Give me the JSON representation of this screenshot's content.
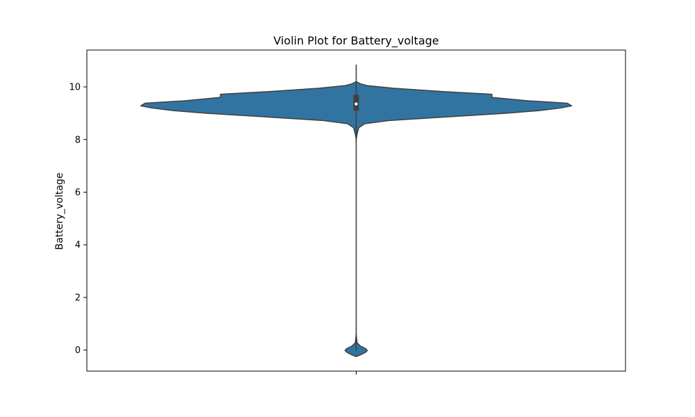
{
  "chart_data": {
    "type": "violin",
    "title": "Violin Plot for Battery_voltage",
    "xlabel": "",
    "ylabel": "Battery_voltage",
    "ylim": [
      -0.8,
      11.4
    ],
    "yticks": [
      0,
      2,
      4,
      6,
      8,
      10
    ],
    "ytick_labels": [
      "0",
      "2",
      "4",
      "6",
      "8",
      "10"
    ],
    "grid": false,
    "legend": "none",
    "colors": {
      "fill": "#3274a1",
      "outline": "#3f3f3f",
      "box": "#3f3f3f",
      "median": "#ffffff"
    },
    "distribution": {
      "min": -0.2,
      "max": 10.85,
      "q1": 9.1,
      "median": 9.35,
      "q3": 9.7,
      "whisker_low": 0.0,
      "whisker_high": 10.85
    },
    "density_profile": [
      {
        "y": -0.25,
        "w": 0.0
      },
      {
        "y": -0.18,
        "w": 0.02
      },
      {
        "y": -0.1,
        "w": 0.04
      },
      {
        "y": -0.02,
        "w": 0.052
      },
      {
        "y": 0.05,
        "w": 0.045
      },
      {
        "y": 0.15,
        "w": 0.02
      },
      {
        "y": 0.28,
        "w": 0.004
      },
      {
        "y": 0.6,
        "w": 0.0
      },
      {
        "y": 8.0,
        "w": 0.0
      },
      {
        "y": 8.2,
        "w": 0.004
      },
      {
        "y": 8.45,
        "w": 0.012
      },
      {
        "y": 8.6,
        "w": 0.04
      },
      {
        "y": 8.72,
        "w": 0.15
      },
      {
        "y": 8.85,
        "w": 0.4
      },
      {
        "y": 9.0,
        "w": 0.7
      },
      {
        "y": 9.1,
        "w": 0.85
      },
      {
        "y": 9.2,
        "w": 0.95
      },
      {
        "y": 9.28,
        "w": 1.0
      },
      {
        "y": 9.38,
        "w": 0.98
      },
      {
        "y": 9.47,
        "w": 0.8
      },
      {
        "y": 9.6,
        "w": 0.63
      },
      {
        "y": 9.72,
        "w": 0.63
      },
      {
        "y": 9.82,
        "w": 0.41
      },
      {
        "y": 9.95,
        "w": 0.17
      },
      {
        "y": 10.05,
        "w": 0.05
      },
      {
        "y": 10.12,
        "w": 0.018
      },
      {
        "y": 10.2,
        "w": 0.0
      }
    ]
  }
}
